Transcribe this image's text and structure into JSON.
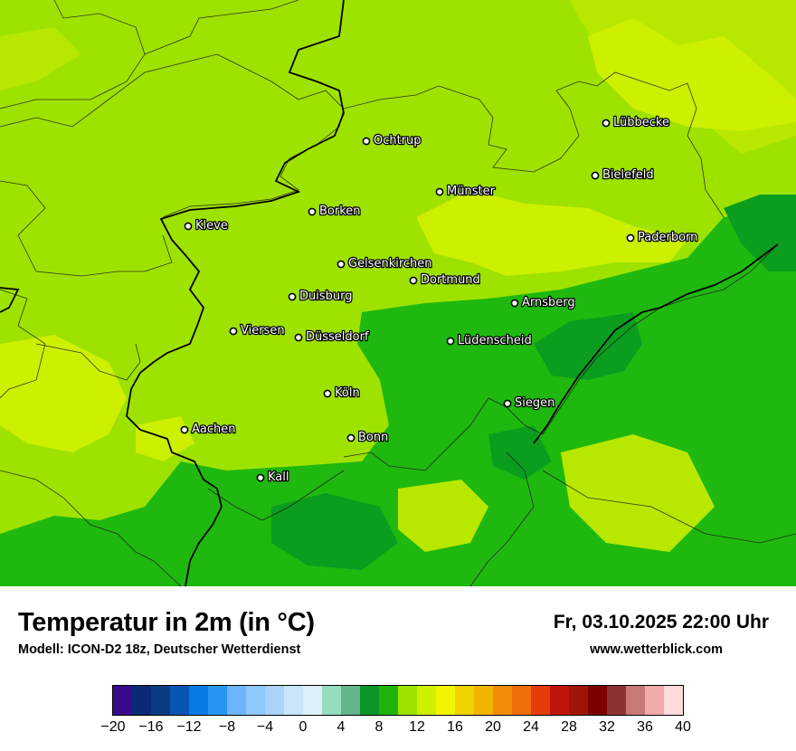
{
  "map": {
    "base_color": "#9ee200",
    "zone_colors": {
      "light_green": "#b8e800",
      "yellow_green": "#cdef00",
      "green": "#1fb80f",
      "dark_green": "#0a9d1e"
    },
    "cities": [
      {
        "name": "Lübbecke"
      },
      {
        "name": "Ochtrup"
      },
      {
        "name": "Bielefeld"
      },
      {
        "name": "Münster"
      },
      {
        "name": "Paderborn"
      },
      {
        "name": "Kleve"
      },
      {
        "name": "Borken"
      },
      {
        "name": "Gelsenkirchen"
      },
      {
        "name": "Dortmund"
      },
      {
        "name": "Duisburg"
      },
      {
        "name": "Arnsberg"
      },
      {
        "name": "Viersen"
      },
      {
        "name": "Düsseldorf"
      },
      {
        "name": "Lüdenscheid"
      },
      {
        "name": "Köln"
      },
      {
        "name": "Siegen"
      },
      {
        "name": "Aachen"
      },
      {
        "name": "Bonn"
      },
      {
        "name": "Kall"
      }
    ]
  },
  "footer": {
    "title": "Temperatur in 2m (in °C)",
    "subtitle": "Modell: ICON-D2 18z, Deutscher Wetterdienst",
    "datetime": "Fr, 03.10.2025 22:00 Uhr",
    "website": "www.wetterblick.com"
  },
  "legend": {
    "colors": [
      "#3a0a8c",
      "#0a2a78",
      "#0a3c82",
      "#0a55b4",
      "#0a7ae6",
      "#2896f0",
      "#6eb4fa",
      "#8cc8fa",
      "#aad2fa",
      "#c8e6fa",
      "#dcf0fa",
      "#96dcbe",
      "#64b48c",
      "#0a9628",
      "#1eb40a",
      "#9ee200",
      "#cdef00",
      "#f0f500",
      "#f0d200",
      "#f0b400",
      "#f08c0a",
      "#f06e0a",
      "#e63c0a",
      "#be140a",
      "#a0140a",
      "#7d0000",
      "#8c3232",
      "#c87878",
      "#f0aaaa",
      "#ffdcdc"
    ],
    "ticks": [
      "−20",
      "−16",
      "−12",
      "−8",
      "−4",
      "0",
      "4",
      "8",
      "12",
      "16",
      "20",
      "24",
      "28",
      "32",
      "36",
      "40"
    ]
  }
}
